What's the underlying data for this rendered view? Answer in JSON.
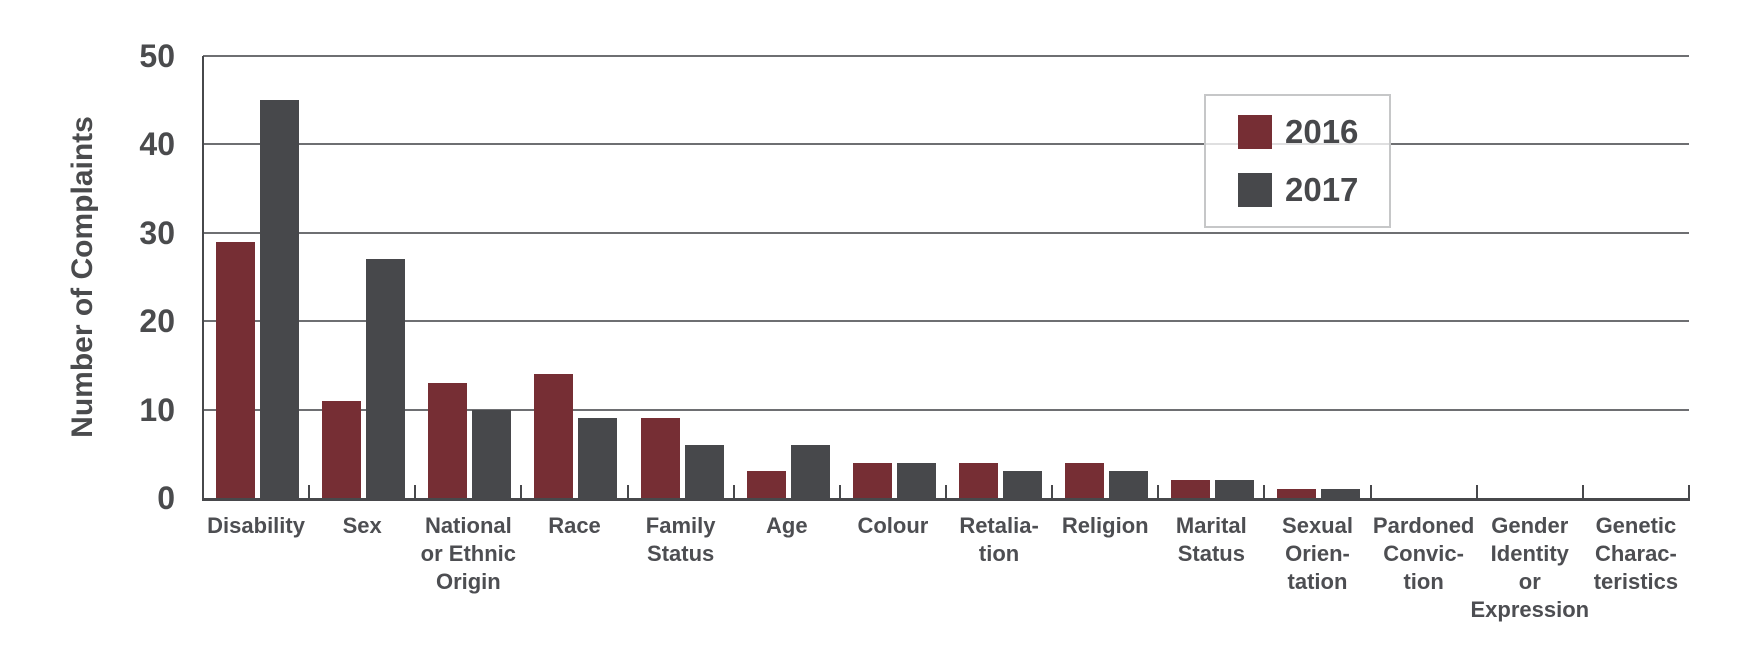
{
  "y_axis": {
    "title": "Number of Complaints",
    "ticks": [
      0,
      10,
      20,
      30,
      40,
      50
    ]
  },
  "legend": {
    "position": "top-right",
    "items": [
      {
        "label": "2016",
        "color": "#762e34"
      },
      {
        "label": "2017",
        "color": "#47484b"
      }
    ]
  },
  "chart_data": {
    "type": "bar",
    "title": "",
    "xlabel": "",
    "ylabel": "Number of Complaints",
    "ylim": [
      0,
      50
    ],
    "grid": true,
    "legend_position": "top-right",
    "categories": [
      "Disability",
      "Sex",
      "National or Ethnic Origin",
      "Race",
      "Family Status",
      "Age",
      "Colour",
      "Retaliation",
      "Religion",
      "Marital Status",
      "Sexual Orientation",
      "Pardoned Conviction",
      "Gender Identity or Expression",
      "Genetic Characteristics"
    ],
    "category_label_lines": [
      [
        "Disability"
      ],
      [
        "Sex"
      ],
      [
        "National",
        "or Ethnic",
        "Origin"
      ],
      [
        "Race"
      ],
      [
        "Family",
        "Status"
      ],
      [
        "Age"
      ],
      [
        "Colour"
      ],
      [
        "Retalia-",
        "tion"
      ],
      [
        "Religion"
      ],
      [
        "Marital",
        "Status"
      ],
      [
        "Sexual",
        "Orien-",
        "tation"
      ],
      [
        "Pardoned",
        "Convic-",
        "tion"
      ],
      [
        "Gender",
        "Identity",
        "or",
        "Expression"
      ],
      [
        "Genetic",
        "Charac-",
        "teristics"
      ]
    ],
    "series": [
      {
        "name": "2016",
        "color": "#762e34",
        "values": [
          29,
          11,
          13,
          14,
          9,
          3,
          4,
          4,
          4,
          2,
          1,
          0,
          0,
          0
        ]
      },
      {
        "name": "2017",
        "color": "#47484b",
        "values": [
          45,
          27,
          10,
          9,
          6,
          6,
          4,
          3,
          3,
          2,
          1,
          0,
          0,
          0
        ]
      }
    ]
  }
}
